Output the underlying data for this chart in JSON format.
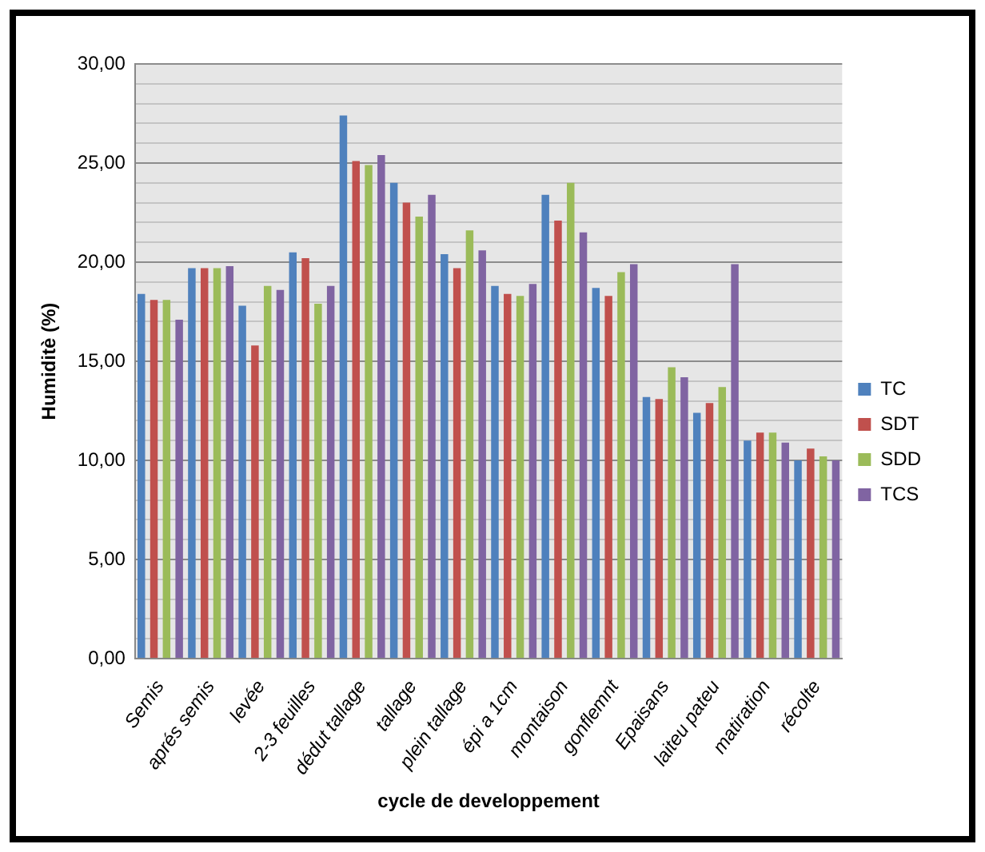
{
  "chart_data": {
    "type": "bar",
    "xlabel": "cycle de developpement",
    "ylabel": "Humiditè (%)",
    "categories": [
      "Semis",
      "aprés semis",
      "levée",
      "2-3 feuilles",
      "dédut tallage",
      "tallage",
      "plein tallage",
      "épi a 1cm",
      "montaison",
      "gonflemnt",
      "Epaisans",
      "laiteu pateu",
      "matiration",
      "récolte"
    ],
    "series": [
      {
        "name": "TC",
        "color": "#4f81bd",
        "values": [
          18.4,
          19.7,
          17.8,
          20.5,
          27.4,
          24.0,
          20.4,
          18.8,
          23.4,
          18.7,
          13.2,
          12.4,
          11.0,
          10.0
        ]
      },
      {
        "name": "SDT",
        "color": "#c0504d",
        "values": [
          18.1,
          19.7,
          15.8,
          20.2,
          25.1,
          23.0,
          19.7,
          18.4,
          22.1,
          18.3,
          13.1,
          12.9,
          11.4,
          10.6
        ]
      },
      {
        "name": "SDD",
        "color": "#9bbb59",
        "values": [
          18.1,
          19.7,
          18.8,
          17.9,
          24.9,
          22.3,
          21.6,
          18.3,
          24.0,
          19.5,
          14.7,
          13.7,
          11.4,
          10.2
        ]
      },
      {
        "name": "TCS",
        "color": "#8064a2",
        "values": [
          17.1,
          19.8,
          18.6,
          18.8,
          25.4,
          23.4,
          20.6,
          18.9,
          21.5,
          19.9,
          14.2,
          19.9,
          10.9,
          10.0
        ]
      }
    ],
    "ylim": [
      0,
      30
    ],
    "yticks": [
      {
        "value": 0,
        "label": "0,00"
      },
      {
        "value": 1,
        "label": null
      },
      {
        "value": 2,
        "label": null
      },
      {
        "value": 3,
        "label": null
      },
      {
        "value": 4,
        "label": null
      },
      {
        "value": 5,
        "label": "5,00"
      },
      {
        "value": 6,
        "label": null
      },
      {
        "value": 7,
        "label": null
      },
      {
        "value": 8,
        "label": null
      },
      {
        "value": 9,
        "label": null
      },
      {
        "value": 10,
        "label": "10,00"
      },
      {
        "value": 11,
        "label": null
      },
      {
        "value": 12,
        "label": null
      },
      {
        "value": 13,
        "label": null
      },
      {
        "value": 14,
        "label": null
      },
      {
        "value": 15,
        "label": "15,00"
      },
      {
        "value": 16,
        "label": null
      },
      {
        "value": 17,
        "label": null
      },
      {
        "value": 18,
        "label": null
      },
      {
        "value": 19,
        "label": null
      },
      {
        "value": 20,
        "label": "20,00"
      },
      {
        "value": 21,
        "label": null
      },
      {
        "value": 22,
        "label": null
      },
      {
        "value": 23,
        "label": null
      },
      {
        "value": 24,
        "label": null
      },
      {
        "value": 25,
        "label": "25,00"
      },
      {
        "value": 26,
        "label": null
      },
      {
        "value": 27,
        "label": null
      },
      {
        "value": 28,
        "label": null
      },
      {
        "value": 29,
        "label": null
      },
      {
        "value": 30,
        "label": "30,00"
      }
    ],
    "grid": "y",
    "legend": "right"
  }
}
